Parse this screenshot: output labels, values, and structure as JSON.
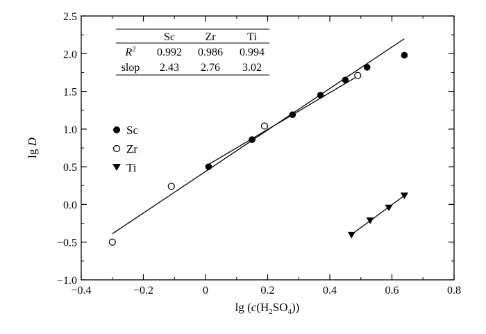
{
  "chart_data": {
    "type": "scatter",
    "xlabel": "lg (c(H2SO4))",
    "ylabel": "lg D",
    "xlim": [
      -0.4,
      0.8
    ],
    "ylim": [
      -1.0,
      2.5
    ],
    "x_ticks": [
      -0.4,
      -0.2,
      0.0,
      0.2,
      0.4,
      0.6,
      0.8
    ],
    "y_ticks": [
      -1.0,
      -0.5,
      0.0,
      0.5,
      1.0,
      1.5,
      2.0,
      2.5
    ],
    "x_tick_labels": [
      "−0.4",
      "−0.2",
      "0",
      "0.2",
      "0.4",
      "0.6",
      "0.8"
    ],
    "y_tick_labels": [
      "−1.0",
      "−0.5",
      "0.0",
      "0.5",
      "1.0",
      "1.5",
      "2.0",
      "2.5"
    ],
    "legend_position": "left-middle",
    "series": [
      {
        "name": "Sc",
        "marker": "filled-circle",
        "color": "#000000",
        "x": [
          0.01,
          0.15,
          0.28,
          0.37,
          0.45,
          0.52,
          0.64
        ],
        "y": [
          0.5,
          0.86,
          1.19,
          1.45,
          1.65,
          1.82,
          1.98
        ],
        "fit": {
          "x1": 0.01,
          "x2": 0.49
        }
      },
      {
        "name": "Zr",
        "marker": "open-circle",
        "color": "#000000",
        "x": [
          -0.3,
          -0.11,
          0.19,
          0.49
        ],
        "y": [
          -0.5,
          0.24,
          1.04,
          1.71
        ],
        "fit": {
          "x1": -0.3,
          "x2": 0.64
        }
      },
      {
        "name": "Ti",
        "marker": "filled-triangle-down",
        "color": "#000000",
        "x": [
          0.47,
          0.53,
          0.59,
          0.64
        ],
        "y": [
          -0.4,
          -0.21,
          -0.04,
          0.12
        ],
        "fit": {
          "x1": 0.47,
          "x2": 0.64
        }
      }
    ],
    "table": {
      "columns": [
        "Sc",
        "Zr",
        "Ti"
      ],
      "rows": [
        {
          "label": "R2",
          "values": [
            "0.992",
            "0.986",
            "0.994"
          ]
        },
        {
          "label": "slop",
          "values": [
            "2.43",
            "2.76",
            "3.02"
          ]
        }
      ]
    }
  }
}
